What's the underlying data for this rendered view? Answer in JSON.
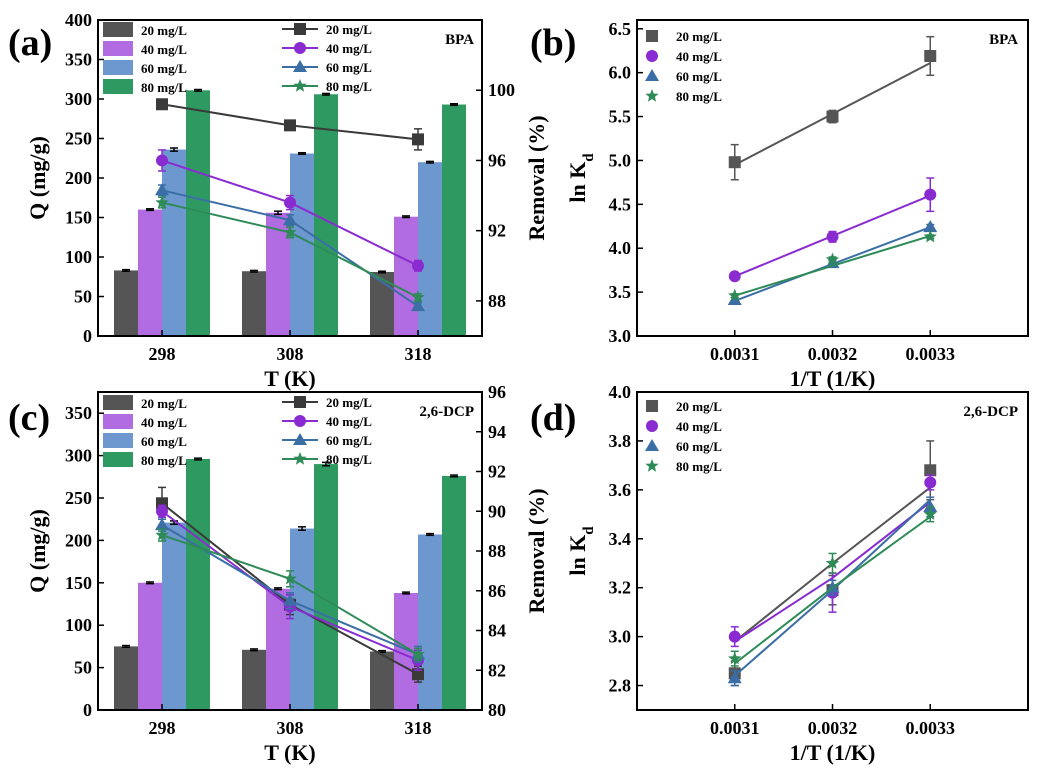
{
  "chart_data": [
    {
      "panel": "(a)",
      "type": "bar",
      "tag": "BPA",
      "xlabel": "T (K)",
      "ylabel": "Q (mg/g)",
      "y2label": "Removal (%)",
      "categories": [
        "298",
        "308",
        "318"
      ],
      "ylim": [
        0,
        400
      ],
      "yticks": [
        "0",
        "50",
        "100",
        "150",
        "200",
        "250",
        "300",
        "350",
        "400"
      ],
      "y2lim": [
        86,
        104
      ],
      "y2ticks": [
        "88",
        "92",
        "96",
        "100"
      ],
      "bar_series": [
        {
          "name": "20 mg/L",
          "color": "#555555",
          "values": [
            83,
            82,
            81
          ],
          "errors": [
            1,
            1,
            1
          ]
        },
        {
          "name": "40 mg/L",
          "color": "#b06ce0",
          "values": [
            160,
            156,
            151
          ],
          "errors": [
            1,
            2,
            1
          ]
        },
        {
          "name": "60 mg/L",
          "color": "#6d97cf",
          "values": [
            236,
            231,
            220
          ],
          "errors": [
            2,
            1,
            1
          ]
        },
        {
          "name": "80 mg/L",
          "color": "#2e9a62",
          "values": [
            311,
            306,
            293
          ],
          "errors": [
            1,
            1,
            1
          ]
        }
      ],
      "line_series": [
        {
          "name": "20 mg/L",
          "color": "#3a3a3a",
          "marker": "square",
          "values": [
            99.2,
            98.0,
            97.2
          ],
          "errors": [
            0.15,
            0.2,
            0.6
          ]
        },
        {
          "name": "40 mg/L",
          "color": "#8a2bd2",
          "values": [
            96.0,
            93.6,
            90.0
          ],
          "marker": "circle",
          "errors": [
            0.6,
            0.4,
            0.3
          ]
        },
        {
          "name": "60 mg/L",
          "color": "#3a6ea5",
          "values": [
            94.3,
            92.6,
            87.7
          ],
          "marker": "triangle",
          "errors": [
            0.3,
            0.3,
            0.2
          ]
        },
        {
          "name": "80 mg/L",
          "color": "#2e8b57",
          "values": [
            93.6,
            91.9,
            88.2
          ],
          "marker": "star",
          "errors": [
            0.3,
            0.3,
            0.2
          ]
        }
      ]
    },
    {
      "panel": "(b)",
      "type": "scatter",
      "tag": "BPA",
      "xlabel": "1/T (1/K)",
      "ylabel": "ln K",
      "ylabel_sub": "d",
      "x": [
        0.0031,
        0.0032,
        0.0033
      ],
      "xticks": [
        "0.0031",
        "0.0032",
        "0.0033"
      ],
      "ylim": [
        3.0,
        6.6
      ],
      "yticks": [
        "3.0",
        "3.5",
        "4.0",
        "4.5",
        "5.0",
        "5.5",
        "6.0",
        "6.5"
      ],
      "series": [
        {
          "name": "20 mg/L",
          "color": "#555555",
          "marker": "square",
          "values": [
            4.98,
            5.5,
            6.19
          ],
          "errors": [
            0.2,
            0.07,
            0.22
          ],
          "fit": [
            4.95,
            5.53,
            6.11
          ]
        },
        {
          "name": "40 mg/L",
          "color": "#8a2bd2",
          "marker": "circle",
          "values": [
            3.68,
            4.13,
            4.61
          ],
          "errors": [
            0.03,
            0.06,
            0.19
          ],
          "fit": [
            3.68,
            4.14,
            4.6
          ]
        },
        {
          "name": "60 mg/L",
          "color": "#3a6ea5",
          "marker": "triangle",
          "values": [
            3.41,
            3.83,
            4.24
          ],
          "errors": [
            0.03,
            0.03,
            0.03
          ],
          "fit": [
            3.4,
            3.82,
            4.24
          ]
        },
        {
          "name": "80 mg/L",
          "color": "#2e8b57",
          "marker": "star",
          "values": [
            3.46,
            3.87,
            4.13
          ],
          "errors": [
            0.02,
            0.03,
            0.02
          ],
          "fit": [
            3.46,
            3.8,
            4.14
          ]
        }
      ]
    },
    {
      "panel": "(c)",
      "type": "bar",
      "tag": "2,6-DCP",
      "xlabel": "T (K)",
      "ylabel": "Q (mg/g)",
      "y2label": "Removal (%)",
      "categories": [
        "298",
        "308",
        "318"
      ],
      "ylim": [
        0,
        375
      ],
      "yticks": [
        "0",
        "50",
        "100",
        "150",
        "200",
        "250",
        "300",
        "350"
      ],
      "y2lim": [
        80,
        96
      ],
      "y2ticks": [
        "80",
        "82",
        "84",
        "86",
        "88",
        "90",
        "92",
        "94",
        "96"
      ],
      "bar_series": [
        {
          "name": "20 mg/L",
          "color": "#555555",
          "values": [
            75,
            71,
            69
          ],
          "errors": [
            1,
            1,
            1
          ]
        },
        {
          "name": "40 mg/L",
          "color": "#b06ce0",
          "values": [
            150,
            143,
            138
          ],
          "errors": [
            1,
            1,
            1
          ]
        },
        {
          "name": "60 mg/L",
          "color": "#6d97cf",
          "values": [
            221,
            214,
            207
          ],
          "errors": [
            2,
            2,
            1
          ]
        },
        {
          "name": "80 mg/L",
          "color": "#2e9a62",
          "values": [
            296,
            290,
            276
          ],
          "errors": [
            1,
            2,
            1
          ]
        }
      ],
      "line_series": [
        {
          "name": "20 mg/L",
          "color": "#3a3a3a",
          "marker": "square",
          "values": [
            90.4,
            85.3,
            81.8
          ],
          "errors": [
            0.8,
            0.5,
            0.4
          ]
        },
        {
          "name": "40 mg/L",
          "color": "#8a2bd2",
          "marker": "circle",
          "values": [
            90.0,
            85.2,
            82.5
          ],
          "errors": [
            0.3,
            0.6,
            0.5
          ]
        },
        {
          "name": "60 mg/L",
          "color": "#3a6ea5",
          "marker": "triangle",
          "values": [
            89.3,
            85.5,
            82.8
          ],
          "errors": [
            0.3,
            0.4,
            0.4
          ]
        },
        {
          "name": "80 mg/L",
          "color": "#2e8b57",
          "marker": "star",
          "values": [
            88.8,
            86.6,
            82.8
          ],
          "errors": [
            0.3,
            0.4,
            0.3
          ]
        }
      ]
    },
    {
      "panel": "(d)",
      "type": "scatter",
      "tag": "2,6-DCP",
      "xlabel": "1/T (1/K)",
      "ylabel": "ln K",
      "ylabel_sub": "d",
      "x": [
        0.0031,
        0.0032,
        0.0033
      ],
      "xticks": [
        "0.0031",
        "0.0032",
        "0.0033"
      ],
      "ylim": [
        2.7,
        4.0
      ],
      "yticks": [
        "2.8",
        "3.0",
        "3.2",
        "3.4",
        "3.6",
        "3.8",
        "4.0"
      ],
      "series": [
        {
          "name": "20 mg/L",
          "color": "#555555",
          "marker": "square",
          "values": [
            2.85,
            3.19,
            3.68
          ],
          "errors": [
            0.05,
            0.06,
            0.12
          ],
          "fit": [
            2.98,
            3.3,
            3.61
          ]
        },
        {
          "name": "40 mg/L",
          "color": "#8a2bd2",
          "marker": "circle",
          "values": [
            3.0,
            3.18,
            3.63
          ],
          "errors": [
            0.04,
            0.08,
            0.03
          ],
          "fit": [
            2.98,
            3.24,
            3.55
          ]
        },
        {
          "name": "60 mg/L",
          "color": "#3a6ea5",
          "marker": "triangle",
          "values": [
            2.83,
            3.2,
            3.53
          ],
          "errors": [
            0.03,
            0.03,
            0.04
          ],
          "fit": [
            2.84,
            3.19,
            3.56
          ]
        },
        {
          "name": "80 mg/L",
          "color": "#2e8b57",
          "marker": "star",
          "values": [
            2.91,
            3.3,
            3.5
          ],
          "errors": [
            0.03,
            0.04,
            0.03
          ],
          "fit": [
            2.89,
            3.2,
            3.49
          ]
        }
      ]
    }
  ]
}
